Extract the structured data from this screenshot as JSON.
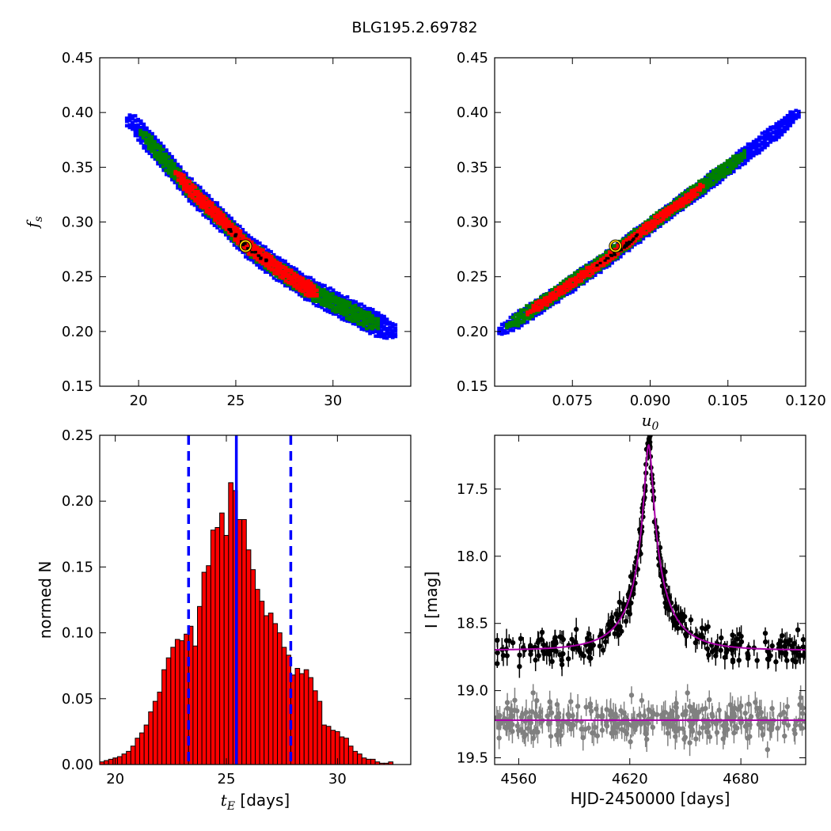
{
  "figure_title": "BLG195.2.69782",
  "chart_data": [
    {
      "id": "tE-fs",
      "type": "heatmap",
      "xlabel": "",
      "ylabel": "f_s",
      "xlim": [
        18,
        34
      ],
      "ylim": [
        0.15,
        0.45
      ],
      "xticks": [
        20,
        25,
        30
      ],
      "yticks": [
        0.15,
        0.2,
        0.25,
        0.3,
        0.35,
        0.4,
        0.45
      ],
      "xtick_labels": [
        "20",
        "25",
        "30"
      ],
      "ytick_labels": [
        "0.15",
        "0.20",
        "0.25",
        "0.30",
        "0.35",
        "0.40",
        "0.45"
      ],
      "centerline": [
        [
          19.5,
          0.392
        ],
        [
          21,
          0.362
        ],
        [
          22.5,
          0.33
        ],
        [
          24,
          0.305
        ],
        [
          25.5,
          0.278
        ],
        [
          27,
          0.258
        ],
        [
          28.5,
          0.24
        ],
        [
          30,
          0.226
        ],
        [
          31.5,
          0.212
        ],
        [
          33,
          0.2
        ]
      ],
      "regions": [
        {
          "level": "3-sigma",
          "color": "#0000ff",
          "x_range": [
            19.3,
            33.2
          ],
          "half_width": 0.011
        },
        {
          "level": "2-sigma",
          "color": "#008000",
          "x_range": [
            20,
            32.3
          ],
          "half_width": 0.008
        },
        {
          "level": "1-sigma",
          "color": "#ff0000",
          "x_range": [
            21.8,
            29.2
          ],
          "half_width": 0.006
        }
      ],
      "best_fit": {
        "x": 25.5,
        "y": 0.278,
        "color": "#ffd700"
      }
    },
    {
      "id": "u0-fs",
      "type": "heatmap",
      "xlabel": "u_0",
      "ylabel": "",
      "xlim": [
        0.06,
        0.12
      ],
      "ylim": [
        0.15,
        0.45
      ],
      "xticks": [
        0.075,
        0.09,
        0.105,
        0.12
      ],
      "yticks": [
        0.15,
        0.2,
        0.25,
        0.3,
        0.35,
        0.4,
        0.45
      ],
      "xtick_labels": [
        "0.075",
        "0.090",
        "0.105",
        "0.120"
      ],
      "ytick_labels": [
        "0.15",
        "0.20",
        "0.25",
        "0.30",
        "0.35",
        "0.40",
        "0.45"
      ],
      "centerline": [
        [
          0.0605,
          0.2
        ],
        [
          0.07,
          0.229
        ],
        [
          0.08,
          0.262
        ],
        [
          0.09,
          0.298
        ],
        [
          0.1,
          0.333
        ],
        [
          0.11,
          0.369
        ],
        [
          0.118,
          0.398
        ]
      ],
      "regions": [
        {
          "level": "3-sigma",
          "color": "#0000ff",
          "x_range": [
            0.0605,
            0.1185
          ],
          "half_width": 0.008
        },
        {
          "level": "2-sigma",
          "color": "#008000",
          "x_range": [
            0.062,
            0.108
          ],
          "half_width": 0.006
        },
        {
          "level": "1-sigma",
          "color": "#ff0000",
          "x_range": [
            0.066,
            0.1
          ],
          "half_width": 0.004
        }
      ],
      "best_fit": {
        "x": 0.0833,
        "y": 0.278,
        "color": "#ffd700"
      }
    },
    {
      "id": "tE-hist",
      "type": "bar",
      "xlabel": "t_E [days]",
      "ylabel": "normed N",
      "xlim": [
        19.3,
        33.3
      ],
      "ylim": [
        0,
        0.25
      ],
      "xticks": [
        20,
        25,
        30
      ],
      "yticks": [
        0,
        0.05,
        0.1,
        0.15,
        0.2,
        0.25
      ],
      "xtick_labels": [
        "20",
        "25",
        "30"
      ],
      "ytick_labels": [
        "0.00",
        "0.05",
        "0.10",
        "0.15",
        "0.20",
        "0.25"
      ],
      "bin_start": 19.3,
      "bin_width": 0.2,
      "values": [
        0.002,
        0.003,
        0.004,
        0.005,
        0.006,
        0.008,
        0.01,
        0.014,
        0.02,
        0.024,
        0.03,
        0.04,
        0.048,
        0.055,
        0.072,
        0.081,
        0.089,
        0.095,
        0.094,
        0.099,
        0.105,
        0.09,
        0.12,
        0.146,
        0.151,
        0.178,
        0.18,
        0.191,
        0.174,
        0.214,
        0.208,
        0.186,
        0.186,
        0.163,
        0.148,
        0.133,
        0.124,
        0.113,
        0.115,
        0.107,
        0.1,
        0.089,
        0.083,
        0.068,
        0.073,
        0.069,
        0.072,
        0.066,
        0.056,
        0.048,
        0.03,
        0.029,
        0.026,
        0.025,
        0.021,
        0.02,
        0.014,
        0.01,
        0.008,
        0.005,
        0.004,
        0.004,
        0.002,
        0.001,
        0.001,
        0.002
      ],
      "bar_color": "#ff0000",
      "vlines": [
        {
          "x": 25.45,
          "style": "solid",
          "color": "#0000ff"
        },
        {
          "x": 23.3,
          "style": "dashed",
          "color": "#0000ff"
        },
        {
          "x": 27.9,
          "style": "dashed",
          "color": "#0000ff"
        }
      ]
    },
    {
      "id": "lightcurve",
      "type": "scatter",
      "xlabel": "HJD-2450000 [days]",
      "ylabel": "I [mag]",
      "xlim": [
        4547,
        4715
      ],
      "ylim": [
        19.55,
        17.1
      ],
      "y_inverted": true,
      "xticks": [
        4560,
        4620,
        4680
      ],
      "yticks": [
        17.5,
        18.0,
        18.5,
        19.0,
        19.5
      ],
      "xtick_labels": [
        "4560",
        "4620",
        "4680"
      ],
      "ytick_labels": [
        "17.5",
        "18.0",
        "18.5",
        "19.0",
        "19.5"
      ],
      "model": {
        "t0": 4630.2,
        "u0": 0.083,
        "tE": 25.45,
        "fs": 0.278,
        "base_mag": 18.7,
        "color": "#aa00aa"
      },
      "residual_baseline": {
        "mag": 19.22,
        "color": "#aa00aa"
      },
      "series": [
        {
          "color": "#000000",
          "x_range": [
            4547,
            4715
          ],
          "scatter": 0.06,
          "err": [
            0.03,
            0.09
          ],
          "points": 320
        },
        {
          "color": "#808080",
          "x_range": [
            4547,
            4715
          ],
          "scatter": 0.07,
          "err": [
            0.04,
            0.1
          ],
          "points": 320
        }
      ]
    }
  ]
}
